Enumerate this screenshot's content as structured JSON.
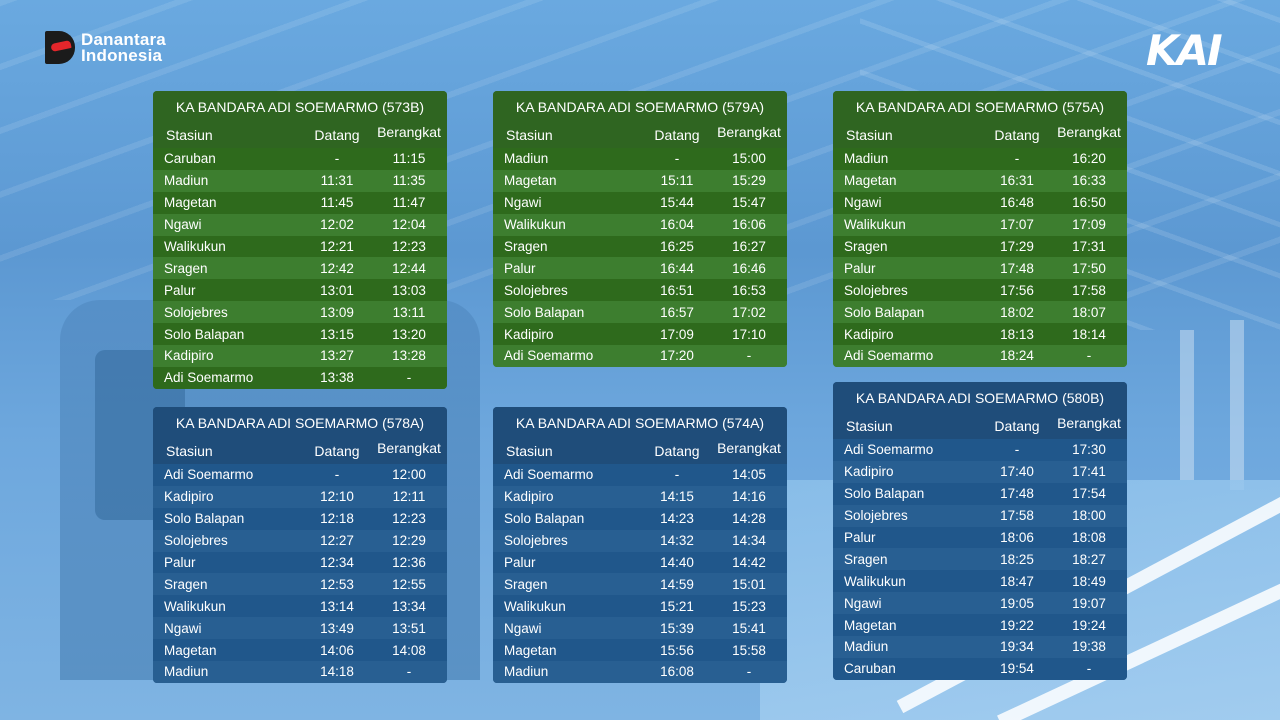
{
  "brand_left": {
    "line1": "Danantara",
    "line2": "Indonesia"
  },
  "brand_right": "KAI",
  "labels": {
    "station": "Stasiun",
    "arrive": "Datang",
    "depart": "Berangkat"
  },
  "colors": {
    "green_header": "#2f6521",
    "green_row_a": "#2e6a1c",
    "green_row_b": "#3d7e2f",
    "blue_header": "#1f4d7a",
    "blue_row_a": "#20578b",
    "blue_row_b": "#285f92"
  },
  "schedules": [
    {
      "title": "KA BANDARA ADI SOEMARMO (573B)",
      "theme": "green",
      "rows": [
        [
          "Caruban",
          "-",
          "11:15"
        ],
        [
          "Madiun",
          "11:31",
          "11:35"
        ],
        [
          "Magetan",
          "11:45",
          "11:47"
        ],
        [
          "Ngawi",
          "12:02",
          "12:04"
        ],
        [
          "Walikukun",
          "12:21",
          "12:23"
        ],
        [
          "Sragen",
          "12:42",
          "12:44"
        ],
        [
          "Palur",
          "13:01",
          "13:03"
        ],
        [
          "Solojebres",
          "13:09",
          "13:11"
        ],
        [
          "Solo Balapan",
          "13:15",
          "13:20"
        ],
        [
          "Kadipiro",
          "13:27",
          "13:28"
        ],
        [
          "Adi Soemarmo",
          "13:38",
          "-"
        ]
      ]
    },
    {
      "title": "KA BANDARA ADI SOEMARMO (579A)",
      "theme": "green",
      "rows": [
        [
          "Madiun",
          "-",
          "15:00"
        ],
        [
          "Magetan",
          "15:11",
          "15:29"
        ],
        [
          "Ngawi",
          "15:44",
          "15:47"
        ],
        [
          "Walikukun",
          "16:04",
          "16:06"
        ],
        [
          "Sragen",
          "16:25",
          "16:27"
        ],
        [
          "Palur",
          "16:44",
          "16:46"
        ],
        [
          "Solojebres",
          "16:51",
          "16:53"
        ],
        [
          "Solo Balapan",
          "16:57",
          "17:02"
        ],
        [
          "Kadipiro",
          "17:09",
          "17:10"
        ],
        [
          "Adi Soemarmo",
          "17:20",
          "-"
        ]
      ]
    },
    {
      "title": "KA BANDARA ADI SOEMARMO (575A)",
      "theme": "green",
      "rows": [
        [
          "Madiun",
          "-",
          "16:20"
        ],
        [
          "Magetan",
          "16:31",
          "16:33"
        ],
        [
          "Ngawi",
          "16:48",
          "16:50"
        ],
        [
          "Walikukun",
          "17:07",
          "17:09"
        ],
        [
          "Sragen",
          "17:29",
          "17:31"
        ],
        [
          "Palur",
          "17:48",
          "17:50"
        ],
        [
          "Solojebres",
          "17:56",
          "17:58"
        ],
        [
          "Solo Balapan",
          "18:02",
          "18:07"
        ],
        [
          "Kadipiro",
          "18:13",
          "18:14"
        ],
        [
          "Adi Soemarmo",
          "18:24",
          "-"
        ]
      ]
    },
    {
      "title": "KA BANDARA ADI SOEMARMO (578A)",
      "theme": "blue",
      "rows": [
        [
          "Adi Soemarmo",
          "-",
          "12:00"
        ],
        [
          "Kadipiro",
          "12:10",
          "12:11"
        ],
        [
          "Solo Balapan",
          "12:18",
          "12:23"
        ],
        [
          "Solojebres",
          "12:27",
          "12:29"
        ],
        [
          "Palur",
          "12:34",
          "12:36"
        ],
        [
          "Sragen",
          "12:53",
          "12:55"
        ],
        [
          "Walikukun",
          "13:14",
          "13:34"
        ],
        [
          "Ngawi",
          "13:49",
          "13:51"
        ],
        [
          "Magetan",
          "14:06",
          "14:08"
        ],
        [
          "Madiun",
          "14:18",
          "-"
        ]
      ]
    },
    {
      "title": "KA BANDARA ADI SOEMARMO (574A)",
      "theme": "blue",
      "rows": [
        [
          "Adi Soemarmo",
          "-",
          "14:05"
        ],
        [
          "Kadipiro",
          "14:15",
          "14:16"
        ],
        [
          "Solo Balapan",
          "14:23",
          "14:28"
        ],
        [
          "Solojebres",
          "14:32",
          "14:34"
        ],
        [
          "Palur",
          "14:40",
          "14:42"
        ],
        [
          "Sragen",
          "14:59",
          "15:01"
        ],
        [
          "Walikukun",
          "15:21",
          "15:23"
        ],
        [
          "Ngawi",
          "15:39",
          "15:41"
        ],
        [
          "Magetan",
          "15:56",
          "15:58"
        ],
        [
          "Madiun",
          "16:08",
          "-"
        ]
      ]
    },
    {
      "title": "KA BANDARA ADI SOEMARMO (580B)",
      "theme": "blue",
      "rows": [
        [
          "Adi Soemarmo",
          "-",
          "17:30"
        ],
        [
          "Kadipiro",
          "17:40",
          "17:41"
        ],
        [
          "Solo Balapan",
          "17:48",
          "17:54"
        ],
        [
          "Solojebres",
          "17:58",
          "18:00"
        ],
        [
          "Palur",
          "18:06",
          "18:08"
        ],
        [
          "Sragen",
          "18:25",
          "18:27"
        ],
        [
          "Walikukun",
          "18:47",
          "18:49"
        ],
        [
          "Ngawi",
          "19:05",
          "19:07"
        ],
        [
          "Magetan",
          "19:22",
          "19:24"
        ],
        [
          "Madiun",
          "19:34",
          "19:38"
        ],
        [
          "Caruban",
          "19:54",
          "-"
        ]
      ]
    }
  ]
}
